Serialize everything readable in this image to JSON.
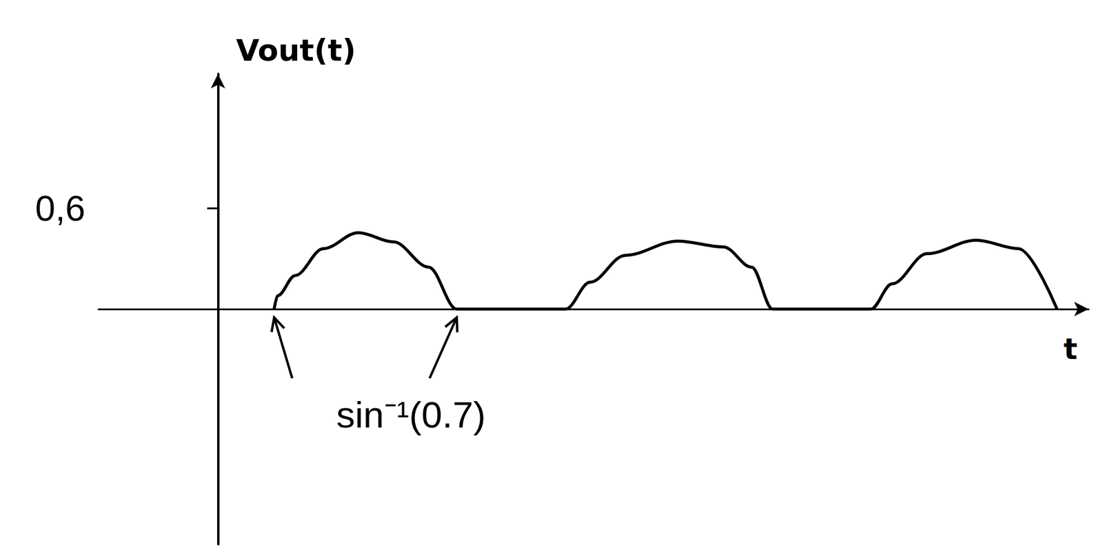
{
  "chart_data": {
    "type": "line",
    "x_label": "t",
    "y_label": "Vout(t)",
    "xlim": [
      -1.7,
      12.4
    ],
    "ylim": [
      -1.4,
      1.4
    ],
    "xticks": [],
    "yticks": [
      {
        "value": 0.6,
        "label": "0,6"
      }
    ],
    "tick_labels": "y",
    "grid": false,
    "color": "#000000",
    "x": [
      0.8,
      0.85,
      1.1,
      1.5,
      2.0,
      2.5,
      3.0,
      3.4,
      4.95,
      5.3,
      5.8,
      6.55,
      7.2,
      7.6,
      7.9,
      9.3,
      9.6,
      10.1,
      10.8,
      11.4,
      11.95
    ],
    "values": [
      0,
      0.08,
      0.2,
      0.36,
      0.455,
      0.4,
      0.25,
      0,
      0,
      0.16,
      0.32,
      0.405,
      0.37,
      0.25,
      0,
      0,
      0.15,
      0.33,
      0.41,
      0.36,
      0
    ],
    "annotations": [
      {
        "text": "sin⁻¹(0.7)",
        "x": [
          0.8,
          3.4
        ]
      }
    ]
  }
}
